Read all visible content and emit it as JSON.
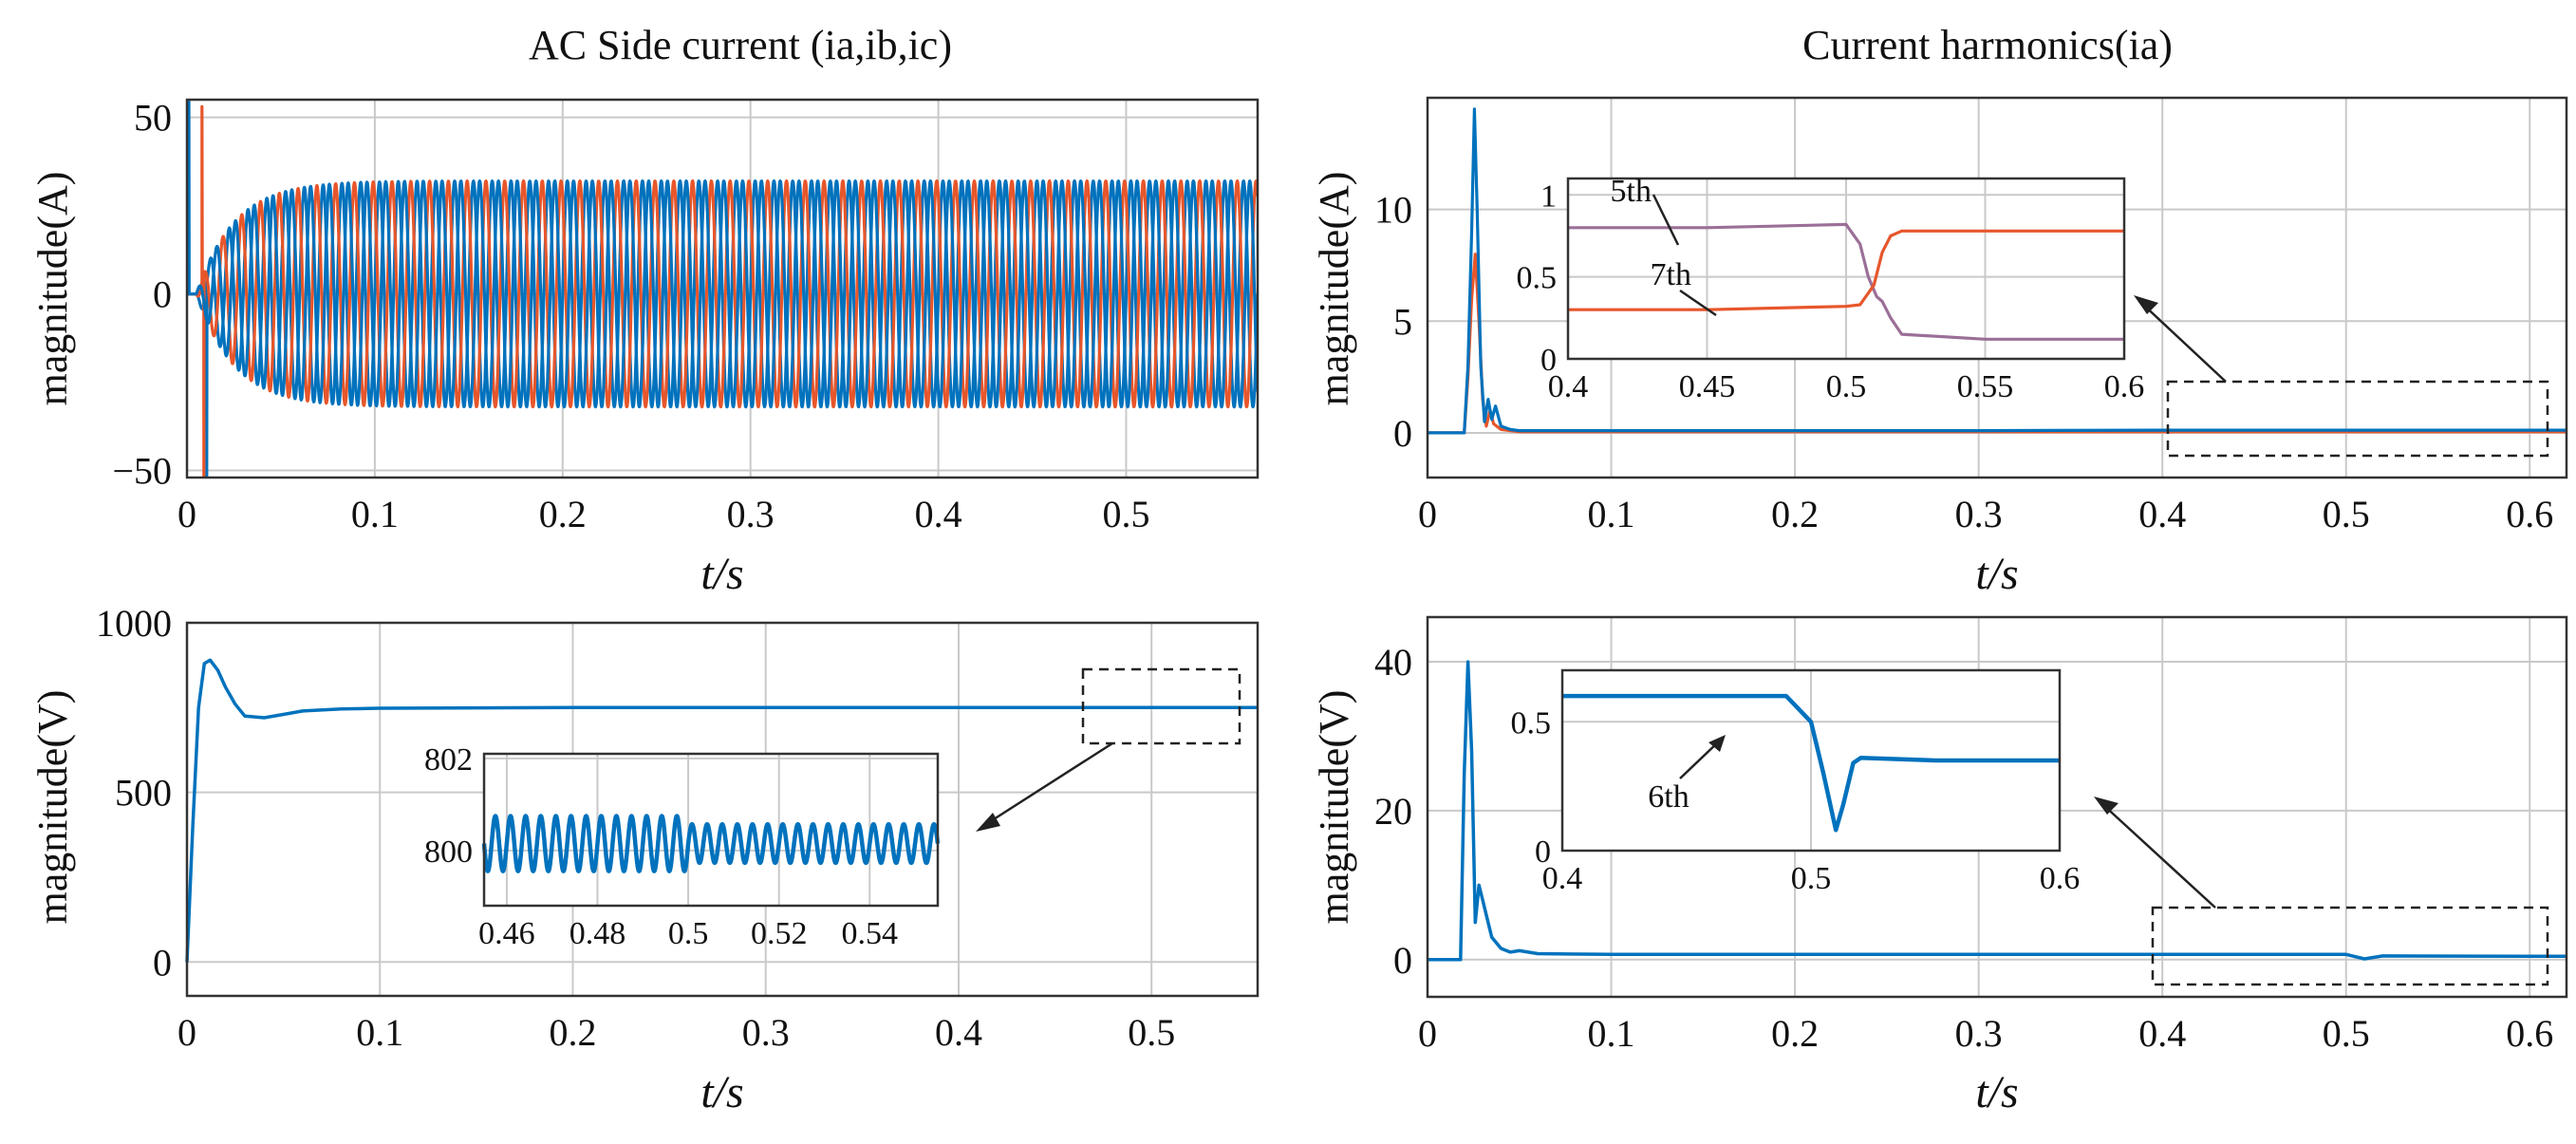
{
  "colors": {
    "blue": "#0072BD",
    "orange": "#E7562B",
    "purple": "#9B6F98",
    "grid": "#c9c9c9"
  },
  "chart_data": [
    {
      "id": "ac_current",
      "type": "line",
      "title": "AC Side current (ia,ib,ic)",
      "xlabel": "t/s",
      "ylabel": "magnitude(A)",
      "xlim": [
        0,
        0.57
      ],
      "ylim": [
        -52,
        55
      ],
      "xticks": [
        0,
        0.1,
        0.2,
        0.3,
        0.4,
        0.5
      ],
      "xtick_labels": [
        "0",
        "0.1",
        "0.2",
        "0.3",
        "0.4",
        "0.5"
      ],
      "yticks": [
        -50,
        0,
        50
      ],
      "ytick_labels": [
        "−50",
        "0",
        "50"
      ],
      "grid": true,
      "series": [
        {
          "color": "blue",
          "signal": {
            "kind": "three_phase",
            "freq": 100,
            "amp": 32,
            "phase_deg": 0,
            "t_on": 0.005,
            "rise_tau": 0.02,
            "spikes": [
              [
                0.001,
                55
              ],
              [
                0.0105,
                -52
              ]
            ]
          }
        },
        {
          "color": "orange",
          "signal": {
            "kind": "three_phase",
            "freq": 100,
            "amp": 32,
            "phase_deg": 120,
            "t_on": 0.005,
            "rise_tau": 0.02,
            "spikes": [
              [
                0.008,
                53
              ],
              [
                0.009,
                -53
              ]
            ]
          }
        },
        {
          "color": "blue",
          "signal": {
            "kind": "three_phase",
            "freq": 100,
            "amp": 32,
            "phase_deg": 240,
            "t_on": 0.005,
            "rise_tau": 0.02,
            "spikes": []
          }
        }
      ]
    },
    {
      "id": "current_harmonics",
      "type": "line",
      "title": "Current harmonics(ia)",
      "xlabel": "t/s",
      "ylabel": "magnitude(A)",
      "xlim": [
        0,
        0.62
      ],
      "ylim": [
        -2,
        15
      ],
      "xticks": [
        0,
        0.1,
        0.2,
        0.3,
        0.4,
        0.5,
        0.6
      ],
      "xtick_labels": [
        "0",
        "0.1",
        "0.2",
        "0.3",
        "0.4",
        "0.5",
        "0.6"
      ],
      "yticks": [
        0,
        5,
        10
      ],
      "ytick_labels": [
        "0",
        "5",
        "10"
      ],
      "grid": true,
      "series": [
        {
          "color": "blue",
          "x": [
            0,
            0.02,
            0.022,
            0.024,
            0.0255,
            0.027,
            0.029,
            0.031,
            0.033,
            0.035,
            0.037,
            0.04,
            0.045,
            0.05,
            0.1,
            0.2,
            0.3,
            0.4,
            0.5,
            0.6,
            0.62
          ],
          "y": [
            0,
            0,
            3,
            9,
            14.5,
            10,
            3,
            0.5,
            1.5,
            0.6,
            1.2,
            0.3,
            0.15,
            0.1,
            0.1,
            0.1,
            0.1,
            0.12,
            0.12,
            0.12,
            0.12
          ]
        },
        {
          "color": "orange",
          "x": [
            0,
            0.02,
            0.022,
            0.024,
            0.026,
            0.028,
            0.03,
            0.032,
            0.034,
            0.036,
            0.04,
            0.05,
            0.1,
            0.2,
            0.3,
            0.4,
            0.5,
            0.6,
            0.62
          ],
          "y": [
            0,
            0,
            2.5,
            6,
            8,
            5,
            1.5,
            0.3,
            1,
            0.4,
            0.15,
            0.05,
            0.05,
            0.05,
            0.05,
            0.05,
            0.05,
            0.05,
            0.05
          ]
        }
      ],
      "inset": {
        "xlim": [
          0.4,
          0.6
        ],
        "ylim": [
          0,
          1.1
        ],
        "xticks": [
          0.4,
          0.45,
          0.5,
          0.55,
          0.6
        ],
        "xtick_labels": [
          "0.4",
          "0.45",
          "0.5",
          "0.55",
          "0.6"
        ],
        "yticks": [
          0,
          0.5,
          1
        ],
        "ytick_labels": [
          "0",
          "0.5",
          "1"
        ],
        "annotations": [
          "5th",
          "7th"
        ],
        "series": [
          {
            "name": "5th",
            "color": "purple",
            "x": [
              0.4,
              0.45,
              0.5,
              0.505,
              0.508,
              0.511,
              0.513,
              0.516,
              0.52,
              0.55,
              0.6
            ],
            "y": [
              0.8,
              0.8,
              0.82,
              0.7,
              0.5,
              0.38,
              0.35,
              0.25,
              0.15,
              0.12,
              0.12
            ]
          },
          {
            "name": "7th",
            "color": "orange",
            "x": [
              0.4,
              0.45,
              0.5,
              0.505,
              0.51,
              0.513,
              0.516,
              0.52,
              0.55,
              0.6
            ],
            "y": [
              0.3,
              0.3,
              0.32,
              0.33,
              0.45,
              0.65,
              0.75,
              0.78,
              0.78,
              0.78
            ]
          }
        ]
      }
    },
    {
      "id": "dc_voltage",
      "type": "line",
      "xlabel": "t/s",
      "ylabel": "magnitude(V)",
      "xlim": [
        0,
        0.555
      ],
      "ylim": [
        -100,
        1000
      ],
      "xticks": [
        0,
        0.1,
        0.2,
        0.3,
        0.4,
        0.5
      ],
      "xtick_labels": [
        "0",
        "0.1",
        "0.2",
        "0.3",
        "0.4",
        "0.5"
      ],
      "yticks": [
        0,
        500,
        1000
      ],
      "ytick_labels": [
        "0",
        "500",
        "1000"
      ],
      "grid": true,
      "series": [
        {
          "color": "blue",
          "x": [
            0,
            0.003,
            0.006,
            0.009,
            0.012,
            0.016,
            0.02,
            0.025,
            0.03,
            0.04,
            0.05,
            0.06,
            0.08,
            0.1,
            0.2,
            0.3,
            0.4,
            0.5,
            0.555
          ],
          "y": [
            0,
            400,
            750,
            880,
            890,
            860,
            810,
            760,
            725,
            720,
            730,
            740,
            746,
            748,
            750,
            750,
            750,
            750,
            750
          ]
        }
      ],
      "inset": {
        "xlim": [
          0.455,
          0.555
        ],
        "ylim": [
          798.8,
          802.1
        ],
        "xticks": [
          0.46,
          0.48,
          0.5,
          0.52,
          0.54
        ],
        "xtick_labels": [
          "0.46",
          "0.48",
          "0.5",
          "0.52",
          "0.54"
        ],
        "yticks": [
          800,
          802
        ],
        "ytick_labels": [
          "800",
          "802"
        ],
        "series": [
          {
            "color": "blue",
            "signal": {
              "kind": "ripple",
              "center": 800.15,
              "amp_before": 0.6,
              "amp_after": 0.42,
              "cycles_per_unit": 300,
              "switch_x": 0.5
            }
          }
        ]
      }
    },
    {
      "id": "voltage_harmonics",
      "type": "line",
      "xlabel": "t/s",
      "ylabel": "magnitude(V)",
      "xlim": [
        0,
        0.62
      ],
      "ylim": [
        -5,
        46
      ],
      "xticks": [
        0,
        0.1,
        0.2,
        0.3,
        0.4,
        0.5,
        0.6
      ],
      "xtick_labels": [
        "0",
        "0.1",
        "0.2",
        "0.3",
        "0.4",
        "0.5",
        "0.6"
      ],
      "yticks": [
        0,
        20,
        40
      ],
      "ytick_labels": [
        "0",
        "20",
        "40"
      ],
      "grid": true,
      "series": [
        {
          "color": "blue",
          "x": [
            0,
            0.018,
            0.02,
            0.022,
            0.024,
            0.026,
            0.028,
            0.03,
            0.032,
            0.035,
            0.04,
            0.045,
            0.05,
            0.06,
            0.1,
            0.2,
            0.3,
            0.4,
            0.5,
            0.51,
            0.52,
            0.6,
            0.62
          ],
          "y": [
            0,
            0,
            25,
            40,
            28,
            5,
            10,
            8,
            6,
            3,
            1.5,
            1,
            1.2,
            0.8,
            0.7,
            0.7,
            0.7,
            0.7,
            0.7,
            0.1,
            0.5,
            0.45,
            0.45
          ]
        }
      ],
      "inset": {
        "xlim": [
          0.4,
          0.6
        ],
        "ylim": [
          0,
          0.7
        ],
        "xticks": [
          0.4,
          0.5,
          0.6
        ],
        "xtick_labels": [
          "0.4",
          "0.5",
          "0.6"
        ],
        "yticks": [
          0,
          0.5
        ],
        "ytick_labels": [
          "0",
          "0.5"
        ],
        "annotations": [
          "6th"
        ],
        "series": [
          {
            "name": "6th",
            "color": "blue",
            "x": [
              0.4,
              0.45,
              0.49,
              0.5,
              0.505,
              0.51,
              0.513,
              0.517,
              0.52,
              0.55,
              0.6
            ],
            "y": [
              0.6,
              0.6,
              0.6,
              0.5,
              0.3,
              0.08,
              0.18,
              0.34,
              0.36,
              0.35,
              0.35
            ]
          }
        ]
      }
    }
  ]
}
